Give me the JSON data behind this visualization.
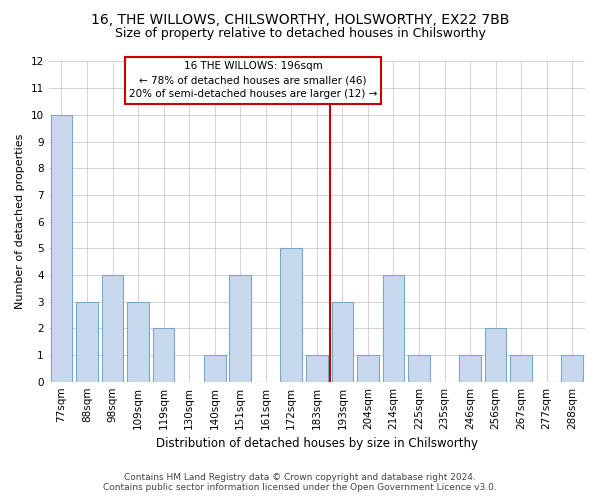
{
  "title": "16, THE WILLOWS, CHILSWORTHY, HOLSWORTHY, EX22 7BB",
  "subtitle": "Size of property relative to detached houses in Chilsworthy",
  "xlabel": "Distribution of detached houses by size in Chilsworthy",
  "ylabel": "Number of detached properties",
  "bar_labels": [
    "77sqm",
    "88sqm",
    "98sqm",
    "109sqm",
    "119sqm",
    "130sqm",
    "140sqm",
    "151sqm",
    "161sqm",
    "172sqm",
    "183sqm",
    "193sqm",
    "204sqm",
    "214sqm",
    "225sqm",
    "235sqm",
    "246sqm",
    "256sqm",
    "267sqm",
    "277sqm",
    "288sqm"
  ],
  "bar_values": [
    10,
    3,
    4,
    3,
    2,
    0,
    1,
    4,
    0,
    5,
    1,
    3,
    1,
    4,
    1,
    0,
    1,
    2,
    1,
    0,
    1
  ],
  "bar_color": "#c8d8ed",
  "bar_edge_color": "#7aa8cc",
  "property_line_index": 11,
  "property_line_label": "16 THE WILLOWS: 196sqm",
  "annotation_line1": "← 78% of detached houses are smaller (46)",
  "annotation_line2": "20% of semi-detached houses are larger (12) →",
  "annotation_box_color": "#ffffff",
  "annotation_box_edge": "#cc0000",
  "ylim": [
    0,
    12
  ],
  "yticks": [
    0,
    1,
    2,
    3,
    4,
    5,
    6,
    7,
    8,
    9,
    10,
    11,
    12
  ],
  "grid_color": "#cccccc",
  "footer_line1": "Contains HM Land Registry data © Crown copyright and database right 2024.",
  "footer_line2": "Contains public sector information licensed under the Open Government Licence v3.0.",
  "bg_color": "#ffffff",
  "title_fontsize": 10,
  "subtitle_fontsize": 9,
  "tick_fontsize": 7.5,
  "ylabel_fontsize": 8,
  "xlabel_fontsize": 8.5,
  "footer_fontsize": 6.5
}
